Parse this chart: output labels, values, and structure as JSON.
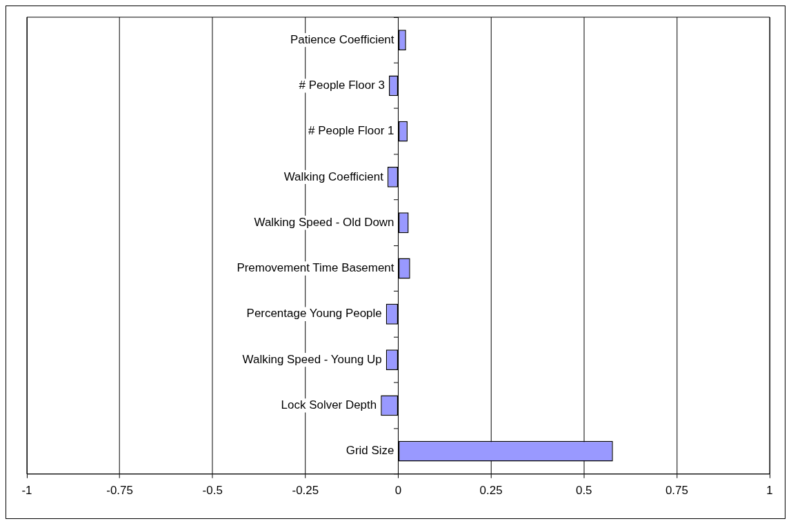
{
  "chart_data": {
    "type": "bar",
    "orientation": "horizontal",
    "categories": [
      "Patience Coefficient",
      "# People Floor 3",
      "# People Floor 1",
      "Walking Coefficient",
      "Walking Speed - Old Down",
      "Premovement Time Basement",
      "Percentage Young People",
      "Walking Speed - Young Up",
      "Lock Solver Depth",
      "Grid Size"
    ],
    "values": [
      0.021,
      -0.025,
      0.025,
      -0.029,
      0.028,
      0.032,
      -0.033,
      -0.033,
      -0.047,
      0.578
    ],
    "color": "#9999ff",
    "xlim": [
      -1,
      1
    ],
    "xticks": [
      -1,
      -0.75,
      -0.5,
      -0.25,
      0,
      0.25,
      0.5,
      0.75,
      1
    ],
    "grid": "x",
    "legend": false
  }
}
